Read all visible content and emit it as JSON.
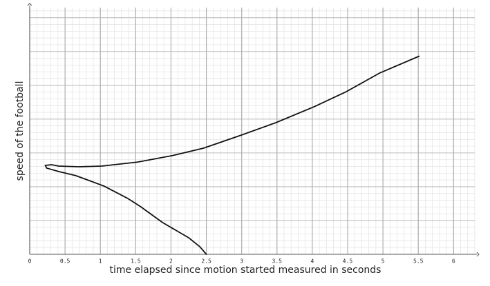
{
  "chart_data": {
    "type": "line",
    "x_label": "time elapsed since motion started measured in seconds",
    "y_label": "speed of the football",
    "xlim": [
      0,
      6.3
    ],
    "ylim": [
      0,
      7.3
    ],
    "xticks": [
      0,
      0.5,
      1,
      1.5,
      2,
      2.5,
      3,
      3.5,
      4,
      4.5,
      5,
      5.5,
      6
    ],
    "grid": true,
    "series": [
      {
        "color": "#111",
        "x": [
          2.5,
          2.41,
          2.25,
          1.88,
          1.57,
          1.39,
          1.05,
          0.65,
          0.41,
          0.24,
          0.22,
          0.31,
          0.41,
          0.7,
          1.02,
          1.53,
          2.02,
          2.46,
          3.0,
          3.49,
          4.03,
          4.47,
          4.96,
          5.51
        ],
        "values": [
          0,
          0.22,
          0.49,
          0.94,
          1.41,
          1.65,
          2.02,
          2.33,
          2.45,
          2.55,
          2.63,
          2.65,
          2.61,
          2.59,
          2.61,
          2.73,
          2.92,
          3.14,
          3.53,
          3.9,
          4.37,
          4.8,
          5.37,
          5.86
        ]
      }
    ]
  }
}
